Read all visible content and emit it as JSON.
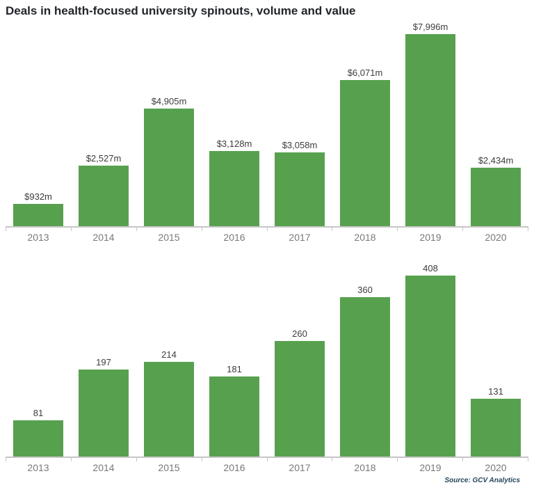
{
  "title": "Deals in health-focused university spinouts, volume and value",
  "source_note": "Source: GCV Analytics",
  "colors": {
    "bar": "#57a14e",
    "axis": "#c6c6c6",
    "year_label": "#77797c",
    "value_label": "#3c3c3c",
    "title": "#21242b",
    "source": "#23455a"
  },
  "chart_data": [
    {
      "type": "bar",
      "name": "deal-value",
      "title": "",
      "xlabel": "",
      "ylabel": "",
      "categories": [
        "2013",
        "2014",
        "2015",
        "2016",
        "2017",
        "2018",
        "2019",
        "2020"
      ],
      "values": [
        932,
        2527,
        4905,
        3128,
        3058,
        6071,
        7996,
        2434
      ],
      "data_labels": [
        "$932m",
        "$2,527m",
        "$4,905m",
        "$3,128m",
        "$3,058m",
        "$6,071m",
        "$7,996m",
        "$2,434m"
      ],
      "ylim": [
        0,
        7996
      ],
      "grid": false,
      "legend": false
    },
    {
      "type": "bar",
      "name": "deal-volume",
      "title": "",
      "xlabel": "",
      "ylabel": "",
      "categories": [
        "2013",
        "2014",
        "2015",
        "2016",
        "2017",
        "2018",
        "2019",
        "2020"
      ],
      "values": [
        81,
        197,
        214,
        181,
        260,
        360,
        408,
        131
      ],
      "data_labels": [
        "81",
        "197",
        "214",
        "181",
        "260",
        "360",
        "408",
        "131"
      ],
      "ylim": [
        0,
        408
      ],
      "grid": false,
      "legend": false
    }
  ]
}
